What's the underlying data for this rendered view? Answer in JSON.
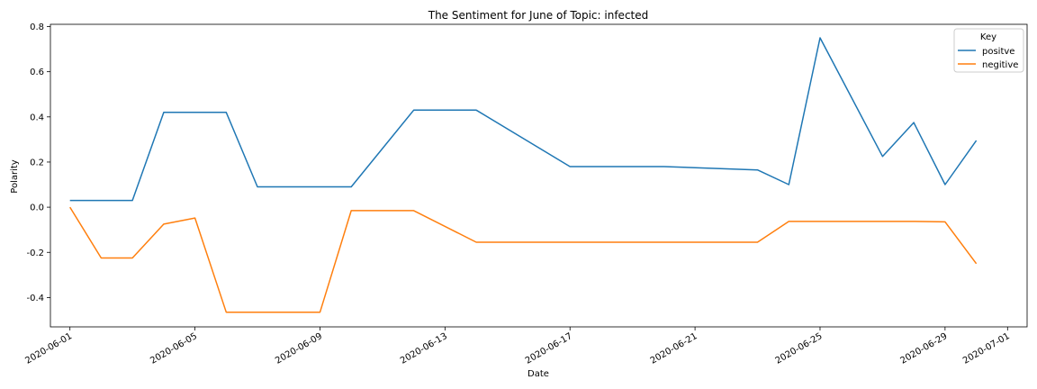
{
  "chart_data": {
    "type": "line",
    "title": "The Sentiment for June of Topic: infected",
    "xlabel": "Date",
    "ylabel": "Polarity",
    "ylim": [
      -0.53,
      0.81
    ],
    "xlim": [
      "2020-05-31T09:00",
      "2020-07-01T15:00"
    ],
    "x_ticks": [
      "2020-06-01",
      "2020-06-05",
      "2020-06-09",
      "2020-06-13",
      "2020-06-17",
      "2020-06-21",
      "2020-06-25",
      "2020-06-29",
      "2020-07-01"
    ],
    "y_ticks": [
      -0.4,
      -0.2,
      0.0,
      0.2,
      0.4,
      0.6,
      0.8
    ],
    "legend": {
      "title": "Key",
      "position": "top-right"
    },
    "grid": false,
    "series": [
      {
        "name": "positve",
        "color": "#1f77b4",
        "points": [
          [
            "2020-06-01",
            0.03
          ],
          [
            "2020-06-02",
            0.03
          ],
          [
            "2020-06-03",
            0.03
          ],
          [
            "2020-06-04",
            0.42
          ],
          [
            "2020-06-05",
            0.42
          ],
          [
            "2020-06-06",
            0.42
          ],
          [
            "2020-06-07",
            0.09
          ],
          [
            "2020-06-08",
            0.09
          ],
          [
            "2020-06-09",
            0.09
          ],
          [
            "2020-06-10",
            0.09
          ],
          [
            "2020-06-12",
            0.43
          ],
          [
            "2020-06-13",
            0.43
          ],
          [
            "2020-06-14",
            0.43
          ],
          [
            "2020-06-17",
            0.18
          ],
          [
            "2020-06-20",
            0.18
          ],
          [
            "2020-06-23",
            0.165
          ],
          [
            "2020-06-24",
            0.1
          ],
          [
            "2020-06-25",
            0.75
          ],
          [
            "2020-06-27",
            0.225
          ],
          [
            "2020-06-28",
            0.375
          ],
          [
            "2020-06-29",
            0.1
          ],
          [
            "2020-06-30",
            0.295
          ]
        ]
      },
      {
        "name": "negitive",
        "color": "#ff7f0e",
        "points": [
          [
            "2020-06-01",
            0.0
          ],
          [
            "2020-06-02",
            -0.225
          ],
          [
            "2020-06-03",
            -0.225
          ],
          [
            "2020-06-04",
            -0.075
          ],
          [
            "2020-06-05",
            -0.048
          ],
          [
            "2020-06-06",
            -0.465
          ],
          [
            "2020-06-07",
            -0.465
          ],
          [
            "2020-06-08",
            -0.465
          ],
          [
            "2020-06-09",
            -0.465
          ],
          [
            "2020-06-10",
            -0.015
          ],
          [
            "2020-06-12",
            -0.015
          ],
          [
            "2020-06-14",
            -0.155
          ],
          [
            "2020-06-17",
            -0.155
          ],
          [
            "2020-06-20",
            -0.155
          ],
          [
            "2020-06-23",
            -0.155
          ],
          [
            "2020-06-24",
            -0.063
          ],
          [
            "2020-06-25",
            -0.063
          ],
          [
            "2020-06-28",
            -0.063
          ],
          [
            "2020-06-29",
            -0.065
          ],
          [
            "2020-06-30",
            -0.25
          ]
        ]
      }
    ]
  }
}
